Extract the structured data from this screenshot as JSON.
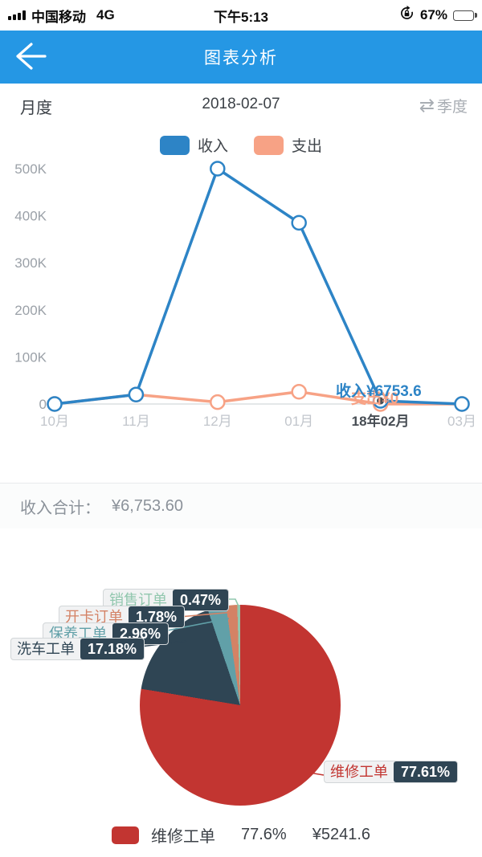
{
  "status_bar": {
    "carrier": "中国移动",
    "network": "4G",
    "time": "下午5:13",
    "battery_pct": "67%",
    "battery_level": 67
  },
  "header": {
    "title": "图表分析"
  },
  "filter_bar": {
    "mode": "月度",
    "date": "2018-02-07",
    "toggle": "季度"
  },
  "summary": {
    "label": "收入合计：",
    "value": "¥6,753.60"
  },
  "chart_data": [
    {
      "type": "line",
      "categories": [
        "10月",
        "11月",
        "12月",
        "01月",
        "18年02月",
        "03月"
      ],
      "selected_index": 4,
      "series": [
        {
          "name": "收入",
          "color": "#2d84c6",
          "values": [
            0,
            20000,
            500000,
            385000,
            6753.6,
            0
          ]
        },
        {
          "name": "支出",
          "color": "#f7a285",
          "values": [
            0,
            20000,
            4000,
            26000,
            0,
            0
          ]
        }
      ],
      "yticks": [
        "0",
        "100K",
        "200K",
        "300K",
        "400K",
        "500K"
      ],
      "ylim": [
        0,
        500000
      ],
      "grid": false,
      "legend_position": "top",
      "point_labels": [
        {
          "series": "收入",
          "text": "收入¥6753.6"
        },
        {
          "series": "支出",
          "text": "支出¥0"
        }
      ]
    },
    {
      "type": "pie",
      "slices": [
        {
          "name": "维修工单",
          "value": 77.61,
          "label": "77.61%",
          "color": "#c23531"
        },
        {
          "name": "洗车工单",
          "value": 17.18,
          "label": "17.18%",
          "color": "#2f4554"
        },
        {
          "name": "保养工单",
          "value": 2.96,
          "label": "2.96%",
          "color": "#61a0a8"
        },
        {
          "name": "开卡订单",
          "value": 1.78,
          "label": "1.78%",
          "color": "#d48265"
        },
        {
          "name": "销售订单",
          "value": 0.47,
          "label": "0.47%",
          "color": "#91c7ae"
        }
      ],
      "legend": [
        {
          "name": "维修工单",
          "pct": "77.6%",
          "amount": "¥5241.6",
          "color": "#c23531"
        }
      ]
    }
  ]
}
